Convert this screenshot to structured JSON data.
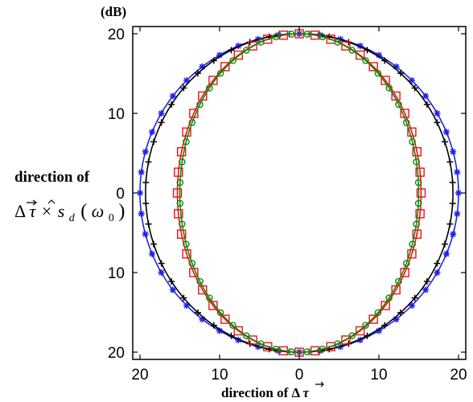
{
  "chart_data": {
    "type": "polar-line",
    "unit_label": "(dB)",
    "ylabel_line1": "direction of",
    "ylabel_line2_prefix": "Δ",
    "ylabel_line2_tau": "τ",
    "ylabel_line2_times": "×",
    "ylabel_line2_s": "s",
    "ylabel_line2_sub": "d",
    "ylabel_line2_arg_open": "(",
    "ylabel_line2_omega": "ω",
    "ylabel_line2_omega_sub": "0",
    "ylabel_line2_arg_close": ")",
    "xlabel_prefix": "direction of Δ",
    "xlabel_tau": "τ",
    "radial_range": [
      0,
      20
    ],
    "x_tick_labels": [
      "20",
      "10",
      "0",
      "10",
      "20"
    ],
    "y_tick_labels": [
      "20",
      "10",
      "0",
      "10",
      "20"
    ],
    "grid": false,
    "series": [
      {
        "color": "#2020e8",
        "marker": "star",
        "rx": 20,
        "ry": 20,
        "markers": 48,
        "marker_offset": 0
      },
      {
        "color": "#000000",
        "marker": "plus",
        "rx": 19.3,
        "ry": 20,
        "markers": 48,
        "marker_offset": 0.5
      },
      {
        "color": "#ee1111",
        "marker": "square",
        "rx": 15.3,
        "ry": 20,
        "markers": 48,
        "marker_offset": 0
      },
      {
        "color": "#118811",
        "marker": "circle",
        "rx": 15,
        "ry": 20,
        "markers": 48,
        "marker_offset": 0.5
      }
    ]
  }
}
